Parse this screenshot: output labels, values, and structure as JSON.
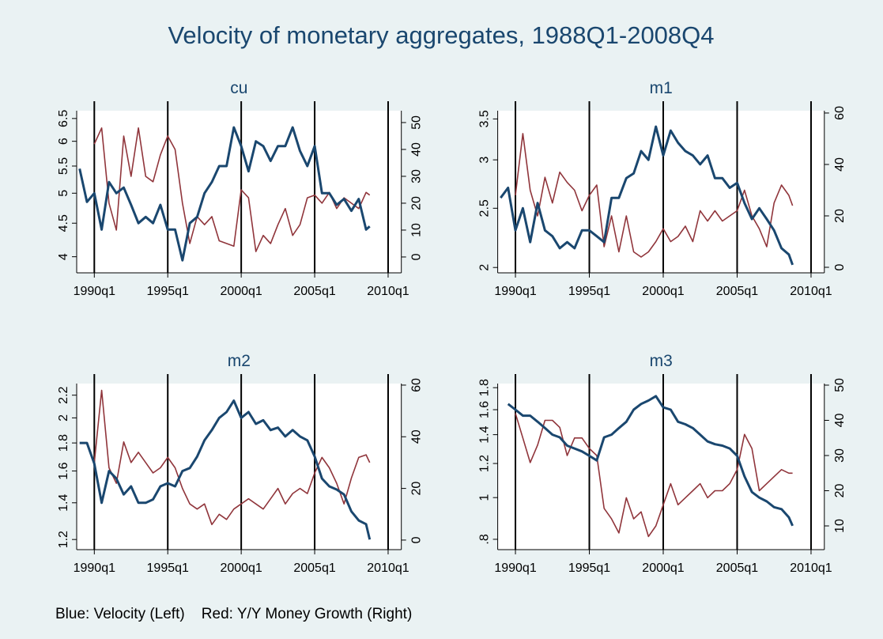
{
  "title": "Velocity of monetary aggregates, 1988Q1-2008Q4",
  "note": "Blue: Velocity (Left)    Red: Y/Y Money Growth (Right)",
  "chart_data": [
    {
      "type": "line",
      "title": "cu",
      "ylog": true,
      "x": [
        1989,
        1989.5,
        1990,
        1990.5,
        1991,
        1991.5,
        1992,
        1992.5,
        1993,
        1993.5,
        1994,
        1994.5,
        1995,
        1995.5,
        1996,
        1996.5,
        1997,
        1997.5,
        1998,
        1998.5,
        1999,
        1999.5,
        2000,
        2000.5,
        2001,
        2001.5,
        2002,
        2002.5,
        2003,
        2003.5,
        2004,
        2004.5,
        2005,
        2005.5,
        2006,
        2006.5,
        2007,
        2007.5,
        2008,
        2008.5,
        2008.75
      ],
      "xlim": [
        1988.8,
        2010.9
      ],
      "xticks": [
        {
          "value": 1990,
          "label": "1990q1"
        },
        {
          "value": 1995,
          "label": "1995q1"
        },
        {
          "value": 2000,
          "label": "2000q1"
        },
        {
          "value": 2005,
          "label": "2005q1"
        },
        {
          "value": 2010,
          "label": "2010q1"
        }
      ],
      "ylim": [
        3.78,
        6.68
      ],
      "yticks": [
        4,
        4.5,
        5,
        5.5,
        6,
        6.5
      ],
      "y2lim": [
        -5.9,
        54.4
      ],
      "y2ticks": [
        0,
        10,
        20,
        30,
        40,
        50
      ],
      "series": [
        {
          "color": "#1a476f",
          "values": [
            5.45,
            4.85,
            5.0,
            4.4,
            5.2,
            5.0,
            5.1,
            4.8,
            4.5,
            4.6,
            4.5,
            4.8,
            4.4,
            4.4,
            3.95,
            4.5,
            4.6,
            5.0,
            5.2,
            5.5,
            5.5,
            6.3,
            5.9,
            5.4,
            6.0,
            5.9,
            5.6,
            5.9,
            5.9,
            6.3,
            5.8,
            5.5,
            5.9,
            5.0,
            5.0,
            4.8,
            4.9,
            4.7,
            4.9,
            4.4,
            4.45
          ]
        },
        {
          "color": "#90353b",
          "axis": "y2",
          "values": [
            null,
            null,
            42,
            48,
            20,
            10,
            45,
            30,
            48,
            30,
            28,
            38,
            45,
            40,
            20,
            5,
            15,
            12,
            15,
            6,
            5,
            4,
            25,
            22,
            2,
            8,
            5,
            12,
            18,
            8,
            12,
            22,
            23,
            20,
            24,
            18,
            22,
            20,
            18,
            24,
            23
          ]
        }
      ]
    },
    {
      "type": "line",
      "title": "m1",
      "ylog": true,
      "x": [
        1989,
        1989.5,
        1990,
        1990.5,
        1991,
        1991.5,
        1992,
        1992.5,
        1993,
        1993.5,
        1994,
        1994.5,
        1995,
        1995.5,
        1996,
        1996.5,
        1997,
        1997.5,
        1998,
        1998.5,
        1999,
        1999.5,
        2000,
        2000.5,
        2001,
        2001.5,
        2002,
        2002.5,
        2003,
        2003.5,
        2004,
        2004.5,
        2005,
        2005.5,
        2006,
        2006.5,
        2007,
        2007.5,
        2008,
        2008.5,
        2008.75
      ],
      "xlim": [
        1988.8,
        2010.9
      ],
      "xticks": [
        {
          "value": 1990,
          "label": "1990q1"
        },
        {
          "value": 1995,
          "label": "1995q1"
        },
        {
          "value": 2000,
          "label": "2000q1"
        },
        {
          "value": 2005,
          "label": "2005q1"
        },
        {
          "value": 2010,
          "label": "2010q1"
        }
      ],
      "ylim": [
        1.96,
        3.61
      ],
      "yticks": [
        2,
        2.5,
        3,
        3.5
      ],
      "y2lim": [
        -2.15,
        60.9
      ],
      "y2ticks": [
        0,
        20,
        40,
        60
      ],
      "series": [
        {
          "color": "#1a476f",
          "values": [
            2.6,
            2.7,
            2.3,
            2.5,
            2.2,
            2.55,
            2.3,
            2.25,
            2.15,
            2.2,
            2.15,
            2.3,
            2.3,
            2.25,
            2.2,
            2.6,
            2.6,
            2.8,
            2.85,
            3.1,
            3.0,
            3.4,
            3.05,
            3.35,
            3.2,
            3.1,
            3.05,
            2.95,
            3.05,
            2.8,
            2.8,
            2.7,
            2.75,
            2.55,
            2.4,
            2.5,
            2.4,
            2.3,
            2.15,
            2.1,
            2.02
          ]
        },
        {
          "color": "#90353b",
          "axis": "y2",
          "values": [
            null,
            null,
            28,
            52,
            30,
            20,
            35,
            25,
            37,
            33,
            30,
            22,
            28,
            32,
            8,
            20,
            6,
            20,
            6,
            4,
            6,
            10,
            15,
            10,
            12,
            16,
            10,
            22,
            18,
            22,
            18,
            20,
            22,
            30,
            20,
            15,
            8,
            25,
            32,
            28,
            24
          ]
        }
      ]
    },
    {
      "type": "line",
      "title": "m2",
      "ylog": true,
      "x": [
        1989,
        1989.5,
        1990,
        1990.5,
        1991,
        1991.5,
        1992,
        1992.5,
        1993,
        1993.5,
        1994,
        1994.5,
        1995,
        1995.5,
        1996,
        1996.5,
        1997,
        1997.5,
        1998,
        1998.5,
        1999,
        1999.5,
        2000,
        2000.5,
        2001,
        2001.5,
        2002,
        2002.5,
        2003,
        2003.5,
        2004,
        2004.5,
        2005,
        2005.5,
        2006,
        2006.5,
        2007,
        2007.5,
        2008,
        2008.5,
        2008.75
      ],
      "xlim": [
        1988.8,
        2010.9
      ],
      "xticks": [
        {
          "value": 1990,
          "label": "1990q1"
        },
        {
          "value": 1995,
          "label": "1995q1"
        },
        {
          "value": 2000,
          "label": "2000q1"
        },
        {
          "value": 2005,
          "label": "2005q1"
        },
        {
          "value": 2010,
          "label": "2010q1"
        }
      ],
      "ylim": [
        1.15,
        2.31
      ],
      "yticks": [
        1.2,
        1.4,
        1.6,
        1.8,
        2,
        2.2
      ],
      "y2lim": [
        -3.7,
        60.6
      ],
      "y2ticks": [
        0,
        20,
        40,
        60
      ],
      "series": [
        {
          "color": "#1a476f",
          "values": [
            1.8,
            1.8,
            1.65,
            1.4,
            1.6,
            1.55,
            1.45,
            1.5,
            1.4,
            1.4,
            1.42,
            1.5,
            1.52,
            1.5,
            1.6,
            1.62,
            1.7,
            1.82,
            1.9,
            2.0,
            2.05,
            2.15,
            2.0,
            2.05,
            1.95,
            1.98,
            1.9,
            1.92,
            1.85,
            1.9,
            1.85,
            1.82,
            1.7,
            1.55,
            1.5,
            1.48,
            1.45,
            1.35,
            1.3,
            1.28,
            1.2
          ]
        },
        {
          "color": "#90353b",
          "axis": "y2",
          "values": [
            null,
            null,
            30,
            58,
            28,
            22,
            38,
            30,
            34,
            30,
            26,
            28,
            32,
            28,
            20,
            14,
            12,
            14,
            6,
            10,
            8,
            12,
            14,
            16,
            14,
            12,
            16,
            20,
            14,
            18,
            20,
            18,
            26,
            32,
            28,
            22,
            14,
            24,
            32,
            33,
            30
          ]
        }
      ]
    },
    {
      "type": "line",
      "title": "m3",
      "ylog": true,
      "x": [
        1989,
        1989.5,
        1990,
        1990.5,
        1991,
        1991.5,
        1992,
        1992.5,
        1993,
        1993.5,
        1994,
        1994.5,
        1995,
        1995.5,
        1996,
        1996.5,
        1997,
        1997.5,
        1998,
        1998.5,
        1999,
        1999.5,
        2000,
        2000.5,
        2001,
        2001.5,
        2002,
        2002.5,
        2003,
        2003.5,
        2004,
        2004.5,
        2005,
        2005.5,
        2006,
        2006.5,
        2007,
        2007.5,
        2008,
        2008.5,
        2008.75
      ],
      "xlim": [
        1988.8,
        2010.9
      ],
      "xticks": [
        {
          "value": 1990,
          "label": "1990q1"
        },
        {
          "value": 1995,
          "label": "1995q1"
        },
        {
          "value": 2000,
          "label": "2000q1"
        },
        {
          "value": 2005,
          "label": "2005q1"
        },
        {
          "value": 2010,
          "label": "2010q1"
        }
      ],
      "ylim": [
        0.757,
        1.84
      ],
      "yticks": [
        {
          "value": 0.8,
          "label": ".8"
        },
        1,
        1.2,
        1.4,
        1.6,
        1.8
      ],
      "y2lim": [
        3.26,
        50.45
      ],
      "y2ticks": [
        10,
        20,
        30,
        40,
        50
      ],
      "series": [
        {
          "color": "#1a476f",
          "values": [
            null,
            1.65,
            1.6,
            1.55,
            1.55,
            1.5,
            1.45,
            1.4,
            1.38,
            1.32,
            1.3,
            1.28,
            1.25,
            1.22,
            1.38,
            1.4,
            1.45,
            1.5,
            1.6,
            1.65,
            1.68,
            1.72,
            1.62,
            1.6,
            1.5,
            1.48,
            1.45,
            1.4,
            1.35,
            1.33,
            1.32,
            1.3,
            1.25,
            1.12,
            1.03,
            1.0,
            0.98,
            0.95,
            0.94,
            0.9,
            0.86
          ]
        },
        {
          "color": "#90353b",
          "axis": "y2",
          "values": [
            null,
            null,
            42,
            35,
            28,
            33,
            40,
            40,
            38,
            30,
            35,
            35,
            32,
            30,
            15,
            12,
            8,
            18,
            12,
            14,
            7,
            10,
            16,
            22,
            16,
            18,
            20,
            22,
            18,
            20,
            20,
            22,
            26,
            36,
            32,
            20,
            22,
            24,
            26,
            25,
            25
          ]
        }
      ]
    }
  ]
}
